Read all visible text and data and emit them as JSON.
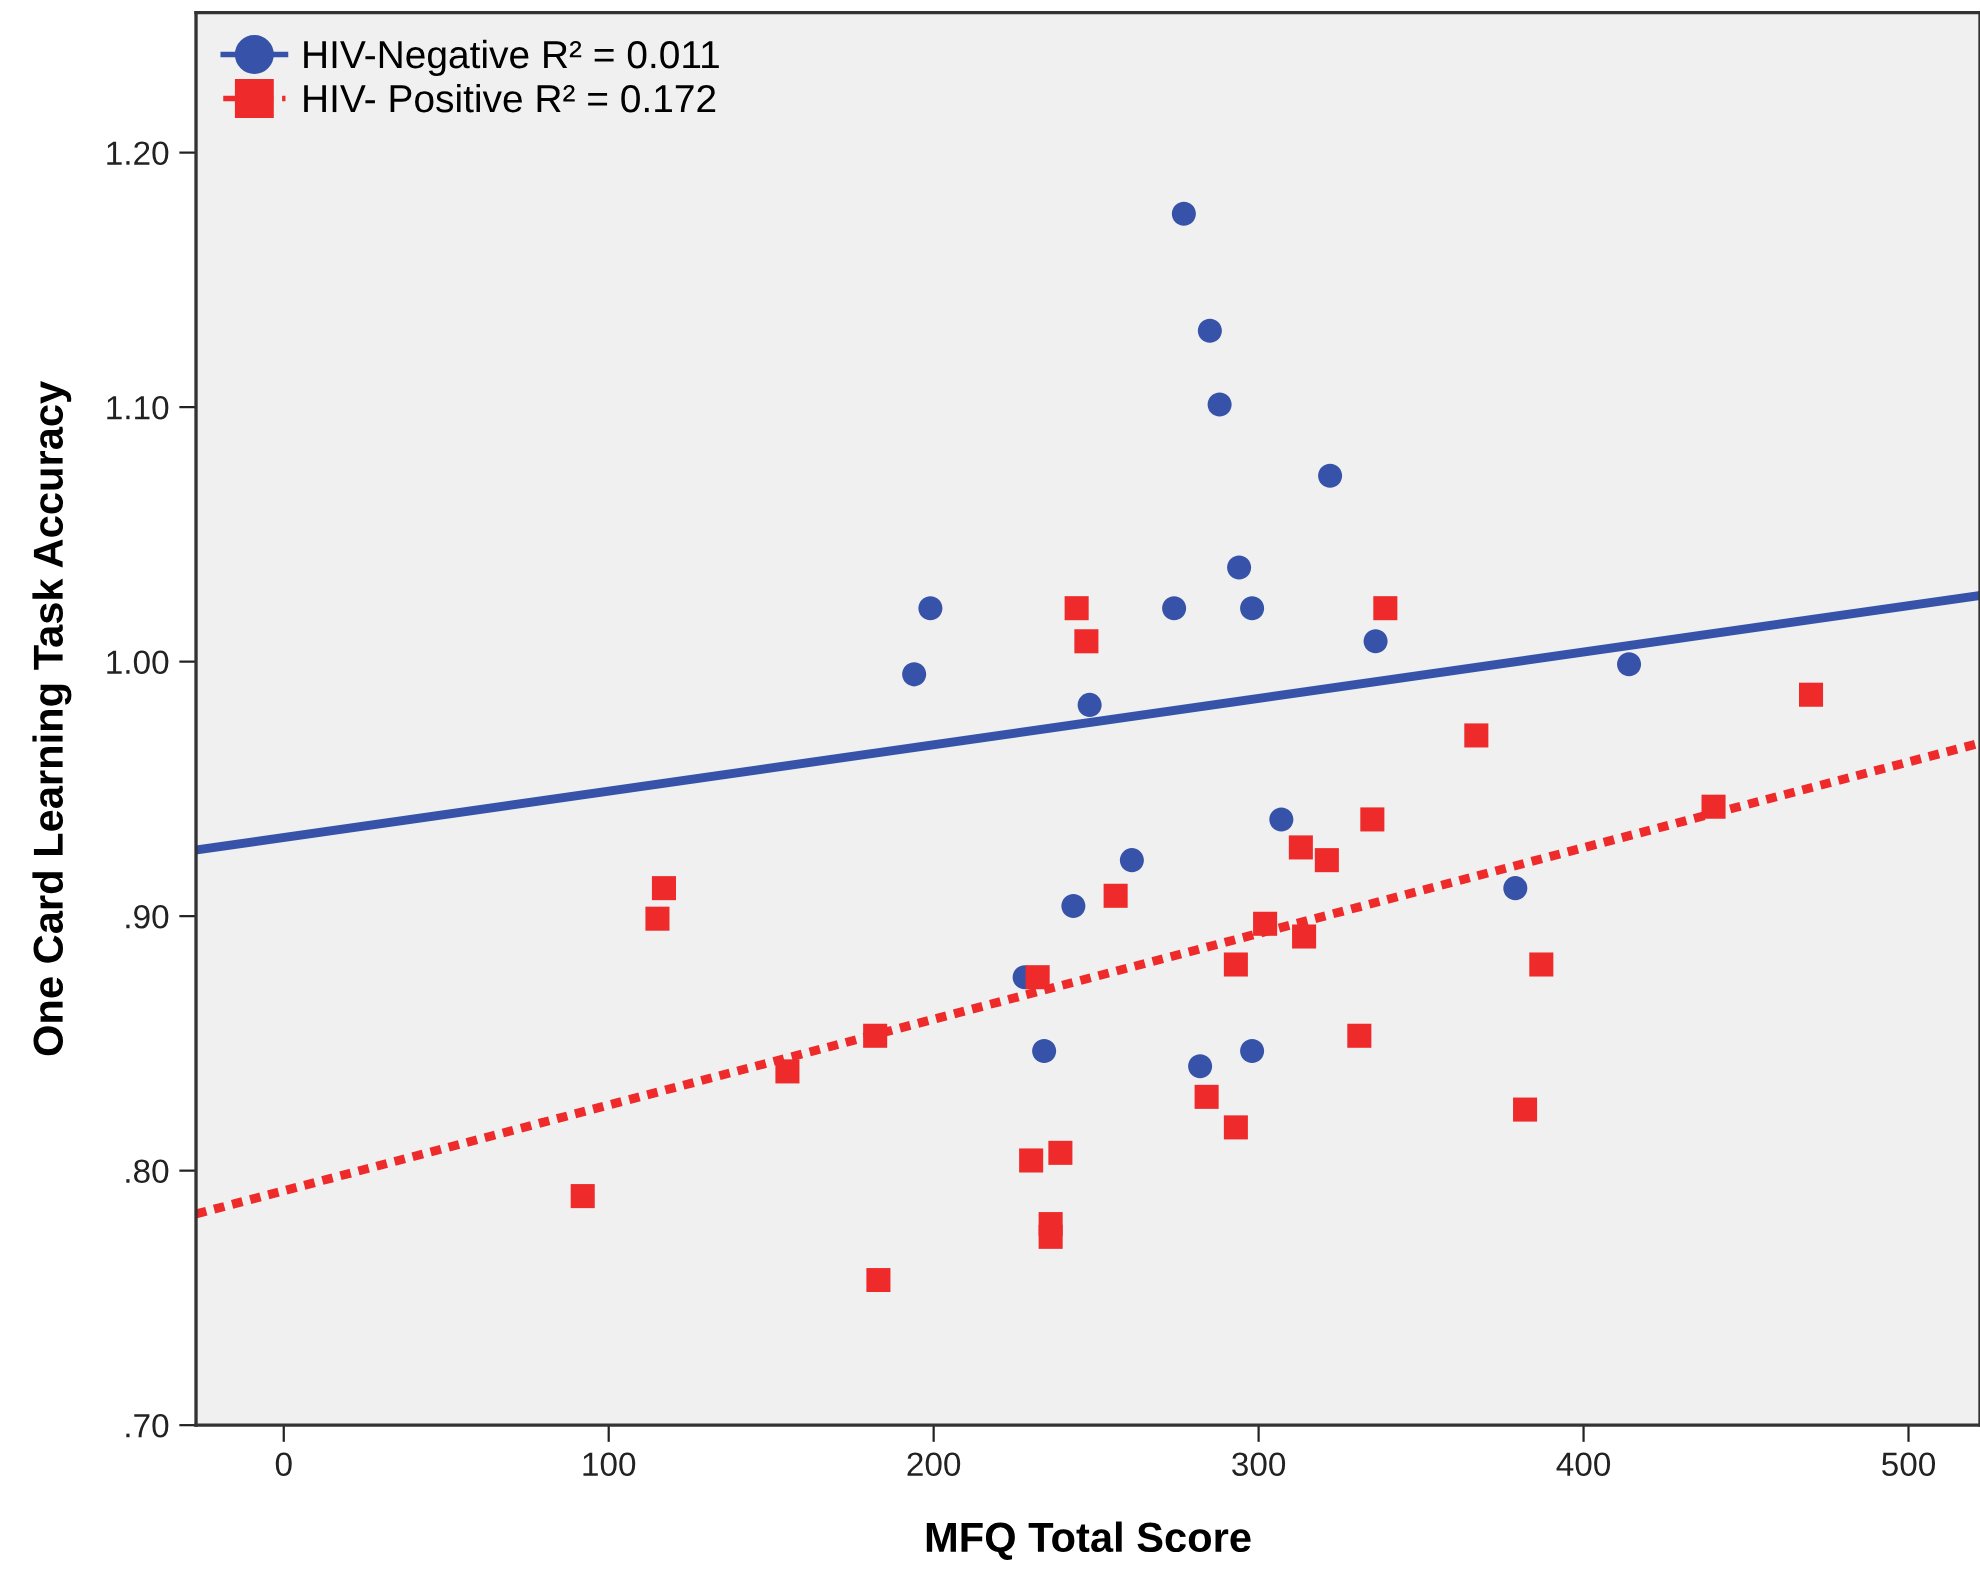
{
  "chart_data": {
    "type": "scatter",
    "xlabel": "MFQ Total Score",
    "ylabel": "One Card Learning Task Accuracy",
    "xlim": [
      -27,
      522
    ],
    "ylim": [
      0.7,
      1.255
    ],
    "xticks": [
      0,
      100,
      200,
      300,
      400,
      500
    ],
    "yticks": [
      {
        "value": 0.7,
        "label": ".70"
      },
      {
        "value": 0.8,
        "label": ".80"
      },
      {
        "value": 0.9,
        "label": ".90"
      },
      {
        "value": 1.0,
        "label": "1.00"
      },
      {
        "value": 1.1,
        "label": "1.10"
      },
      {
        "value": 1.2,
        "label": "1.20"
      }
    ],
    "grid": false,
    "legend": "top left",
    "series": [
      {
        "name": "HIV-Negative R² = 0.011",
        "marker": "circle",
        "color": "#3653a9",
        "x": [
          277,
          285,
          288,
          322,
          294,
          274,
          298,
          336,
          414,
          248,
          199,
          194,
          307,
          261,
          243,
          379,
          228,
          234,
          282,
          298
        ],
        "values": [
          1.176,
          1.13,
          1.101,
          1.073,
          1.037,
          1.021,
          1.021,
          1.008,
          0.999,
          0.983,
          1.021,
          0.995,
          0.938,
          0.922,
          0.904,
          0.911,
          0.876,
          0.847,
          0.841,
          0.847
        ]
      },
      {
        "name": "HIV- Positive R² = 0.172",
        "marker": "square",
        "color": "#ee2a2a",
        "x": [
          244,
          247,
          339,
          470,
          367,
          335,
          313,
          321,
          256,
          440,
          302,
          314,
          293,
          387,
          232,
          331,
          284,
          293,
          382,
          230,
          239,
          236,
          236,
          117,
          115,
          182,
          155,
          92,
          183
        ],
        "values": [
          1.021,
          1.008,
          1.021,
          0.987,
          0.971,
          0.938,
          0.927,
          0.922,
          0.908,
          0.943,
          0.897,
          0.892,
          0.881,
          0.881,
          0.876,
          0.853,
          0.829,
          0.817,
          0.824,
          0.804,
          0.807,
          0.779,
          0.774,
          0.911,
          0.899,
          0.853,
          0.839,
          0.79,
          0.757
        ]
      },
      {
        "type": "line",
        "line_style": "solid",
        "color": "#3653a9",
        "x": [
          -27,
          522
        ],
        "values": [
          0.926,
          1.026
        ]
      },
      {
        "type": "line",
        "line_style": "dotted",
        "color": "#ee2a2a",
        "x": [
          -27,
          522
        ],
        "values": [
          0.783,
          0.968
        ]
      }
    ]
  }
}
